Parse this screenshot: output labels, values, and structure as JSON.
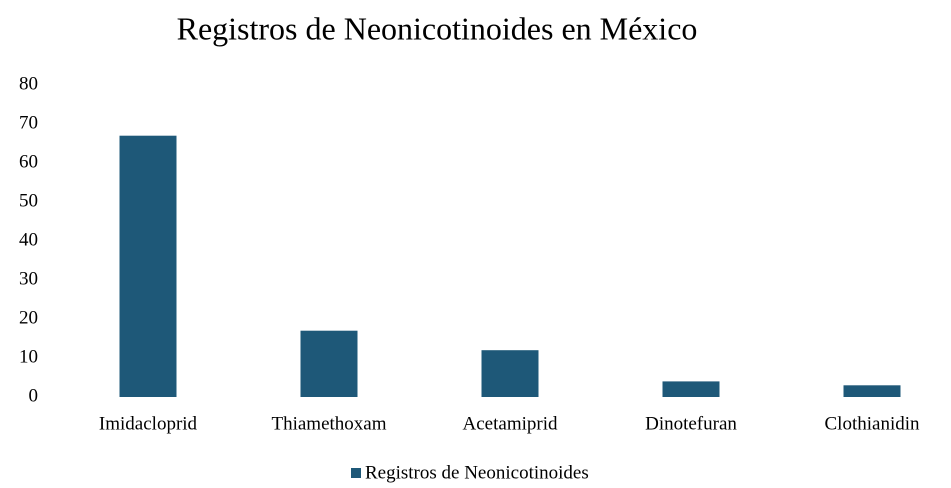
{
  "chart_data": {
    "type": "bar",
    "title": "Registros de Neonicotinoides en México",
    "categories": [
      "Imidacloprid",
      "Thiamethoxam",
      "Acetamiprid",
      "Dinotefuran",
      "Clothianidin"
    ],
    "series": [
      {
        "name": "Registros de Neonicotinoides",
        "color": "#1e5878",
        "values": [
          67,
          17,
          12,
          4,
          3
        ]
      }
    ],
    "ylim": [
      0,
      80
    ],
    "yticks": [
      0,
      10,
      20,
      30,
      40,
      50,
      60,
      70,
      80
    ],
    "grid": false,
    "legend": "bottom"
  }
}
